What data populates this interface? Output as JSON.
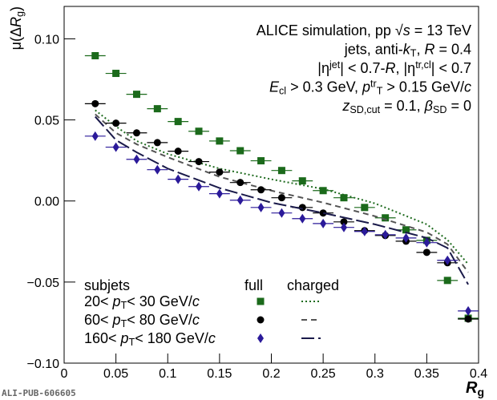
{
  "chart_data": {
    "type": "scatter",
    "xlim": [
      0,
      0.4
    ],
    "ylim": [
      -0.1,
      0.12
    ],
    "xticks": [
      0,
      0.05,
      0.1,
      0.15,
      0.2,
      0.25,
      0.3,
      0.35,
      0.4
    ],
    "yticks": [
      {
        "value": -0.1,
        "label": "−0.10"
      },
      {
        "value": -0.05,
        "label": "−0.05"
      },
      {
        "value": 0,
        "label": "0.00"
      },
      0.05,
      {
        "value": 0.1,
        "label": "0.10"
      }
    ],
    "xlabel": [
      {
        "text": "R",
        "italic": true
      },
      {
        "text": "g",
        "sub": true
      }
    ],
    "ylabel": [
      {
        "text": "μ(Δ"
      },
      {
        "text": "R",
        "italic": true
      },
      {
        "text": "g",
        "sub": true
      },
      {
        "text": ")"
      }
    ],
    "annotations": [
      [
        {
          "text": "ALICE simulation, pp √"
        },
        {
          "text": "s",
          "italic": true
        },
        {
          "text": " = 13 TeV"
        }
      ],
      [
        {
          "text": "jets, anti-"
        },
        {
          "text": "k",
          "italic": true
        },
        {
          "text": "T",
          "sub": true
        },
        {
          "text": ", "
        },
        {
          "text": "R",
          "italic": true
        },
        {
          "text": " = 0.4"
        }
      ],
      [
        {
          "text": "|η"
        },
        {
          "text": "jet",
          "sup": true
        },
        {
          "text": "| < 0.7-"
        },
        {
          "text": "R",
          "italic": true
        },
        {
          "text": ", |η"
        },
        {
          "text": "tr,cl",
          "sup": true
        },
        {
          "text": "| < 0.7"
        }
      ],
      [
        {
          "text": "E",
          "italic": true
        },
        {
          "text": "cl",
          "sub": true
        },
        {
          "text": " > 0.3 GeV, "
        },
        {
          "text": "p",
          "italic": true
        },
        {
          "text": "tr",
          "sup": true
        },
        {
          "text": "T",
          "sub": true
        },
        {
          "text": " > 0.15 GeV/"
        },
        {
          "text": "c",
          "italic": true
        }
      ],
      [
        {
          "text": "z",
          "italic": true
        },
        {
          "text": "SD,cut",
          "sub": true
        },
        {
          "text": " = 0.1, "
        },
        {
          "text": "β",
          "italic": true
        },
        {
          "text": "SD",
          "sub": true
        },
        {
          "text": " = 0"
        }
      ]
    ],
    "legend_headers": [
      "subjets",
      "full",
      "charged"
    ],
    "x": [
      0.03,
      0.05,
      0.07,
      0.09,
      0.11,
      0.13,
      0.15,
      0.17,
      0.19,
      0.21,
      0.23,
      0.25,
      0.27,
      0.29,
      0.31,
      0.33,
      0.35,
      0.37,
      0.39
    ],
    "series": [
      {
        "name": [
          {
            "text": "20< "
          },
          {
            "text": "p",
            "italic": true
          },
          {
            "text": "T",
            "sub": true
          },
          {
            "text": "< 30 GeV/"
          },
          {
            "text": "c",
            "italic": true
          }
        ],
        "color": "#1b6a1b",
        "marker": "square",
        "xerr": 0.01,
        "values": [
          0.0896,
          0.0787,
          0.0658,
          0.0569,
          0.049,
          0.043,
          0.037,
          0.031,
          0.0248,
          0.0188,
          0.0124,
          0.0064,
          0.002,
          -0.004,
          -0.0104,
          -0.0178,
          -0.0243,
          -0.049,
          -0.0723
        ],
        "line_color": "#1f6b1f",
        "dash": "2,3",
        "line_x": [
          0.03,
          0.05,
          0.07,
          0.1,
          0.15,
          0.2,
          0.25,
          0.3,
          0.35,
          0.37,
          0.39
        ],
        "line_values": [
          0.056,
          0.046,
          0.037,
          0.029,
          0.02,
          0.0134,
          0.0074,
          -0.0015,
          -0.0144,
          -0.024,
          -0.039
        ]
      },
      {
        "name": [
          {
            "text": "60< "
          },
          {
            "text": "p",
            "italic": true
          },
          {
            "text": "T",
            "sub": true
          },
          {
            "text": "< 80 GeV/"
          },
          {
            "text": "c",
            "italic": true
          }
        ],
        "color": "#000000",
        "marker": "circle",
        "xerr": 0.01,
        "values": [
          0.06,
          0.048,
          0.042,
          0.036,
          0.0307,
          0.0243,
          0.0178,
          0.0114,
          0.0069,
          0.002,
          -0.004,
          -0.0074,
          -0.0129,
          -0.0183,
          -0.0213,
          -0.0248,
          -0.0317,
          -0.0381,
          -0.0728
        ],
        "line_color": "#555555",
        "dash": "7,5",
        "line_x": [
          0.03,
          0.05,
          0.07,
          0.1,
          0.15,
          0.2,
          0.25,
          0.3,
          0.35,
          0.37,
          0.39
        ],
        "line_values": [
          0.0535,
          0.042,
          0.035,
          0.027,
          0.0149,
          0.0064,
          -0.001,
          -0.0094,
          -0.0193,
          -0.0267,
          -0.044
        ]
      },
      {
        "name": [
          {
            "text": "160< "
          },
          {
            "text": "p",
            "italic": true
          },
          {
            "text": "T",
            "sub": true
          },
          {
            "text": "< 180 GeV/"
          },
          {
            "text": "c",
            "italic": true
          }
        ],
        "color": "#2b1a9a",
        "marker": "diamond",
        "xerr": 0.01,
        "values": [
          0.04,
          0.0332,
          0.0257,
          0.0193,
          0.0134,
          0.0089,
          0.0045,
          0.0005,
          -0.004,
          -0.0074,
          -0.0109,
          -0.0139,
          -0.0163,
          -0.0188,
          -0.0208,
          -0.0228,
          -0.0257,
          -0.0366,
          -0.0678
        ],
        "line_color": "#1a1a4a",
        "dash": "16,5",
        "line_x": [
          0.03,
          0.05,
          0.07,
          0.1,
          0.15,
          0.2,
          0.25,
          0.3,
          0.35,
          0.37,
          0.39
        ],
        "line_values": [
          0.052,
          0.0376,
          0.03,
          0.02,
          0.008,
          -0.001,
          -0.0074,
          -0.0144,
          -0.0228,
          -0.029,
          -0.0515
        ]
      }
    ],
    "footer": "ALI-PUB-606605"
  }
}
